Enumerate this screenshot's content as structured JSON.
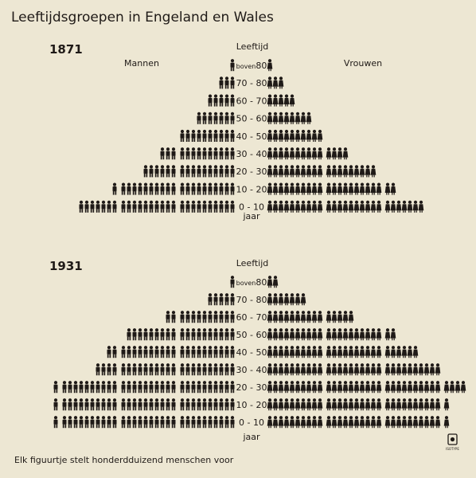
{
  "title": "Leeftijdsgroepen in Engeland en Wales",
  "footnote": "Elk figuurtje stelt honderdduizend menschen voor",
  "logo_text": "ISOTYPE",
  "colors": {
    "background": "#ede7d3",
    "ink": "#1f1a17"
  },
  "chart_data": [
    {
      "type": "pictogram-pyramid",
      "year": "1871",
      "header": "Leeftijd",
      "unit_label": "jaar",
      "left_label": "Mannen",
      "right_label": "Vrouwen",
      "unit_value": "100000 menschen per figuurtje",
      "age_groups": [
        {
          "label": "boven80",
          "prefix": "boven",
          "suffix": "80",
          "men": 1,
          "women": 1
        },
        {
          "label": "70-80",
          "men": 3,
          "women": 3
        },
        {
          "label": "60-70",
          "men": 5,
          "women": 5
        },
        {
          "label": "50-60",
          "men": 7,
          "women": 8
        },
        {
          "label": "40-50",
          "men": 10,
          "women": 10
        },
        {
          "label": "30-40",
          "men": 13,
          "women": 14
        },
        {
          "label": "20-30",
          "men": 16,
          "women": 19
        },
        {
          "label": "10-20",
          "men": 21,
          "women": 22
        },
        {
          "label": "0-10",
          "men": 27,
          "women": 27
        }
      ]
    },
    {
      "type": "pictogram-pyramid",
      "year": "1931",
      "header": "Leeftijd",
      "unit_label": "jaar",
      "left_label": "",
      "right_label": "",
      "unit_value": "100000 menschen per figuurtje",
      "age_groups": [
        {
          "label": "boven80",
          "prefix": "boven",
          "suffix": "80",
          "men": 1,
          "women": 2
        },
        {
          "label": "70-80",
          "men": 5,
          "women": 7
        },
        {
          "label": "60-70",
          "men": 12,
          "women": 15
        },
        {
          "label": "50-60",
          "men": 19,
          "women": 22
        },
        {
          "label": "40-50",
          "men": 22,
          "women": 26
        },
        {
          "label": "30-40",
          "men": 24,
          "women": 30
        },
        {
          "label": "20-30",
          "men": 31,
          "women": 34
        },
        {
          "label": "10-20",
          "men": 31,
          "women": 31
        },
        {
          "label": "0-10",
          "men": 31,
          "women": 31
        }
      ]
    }
  ]
}
